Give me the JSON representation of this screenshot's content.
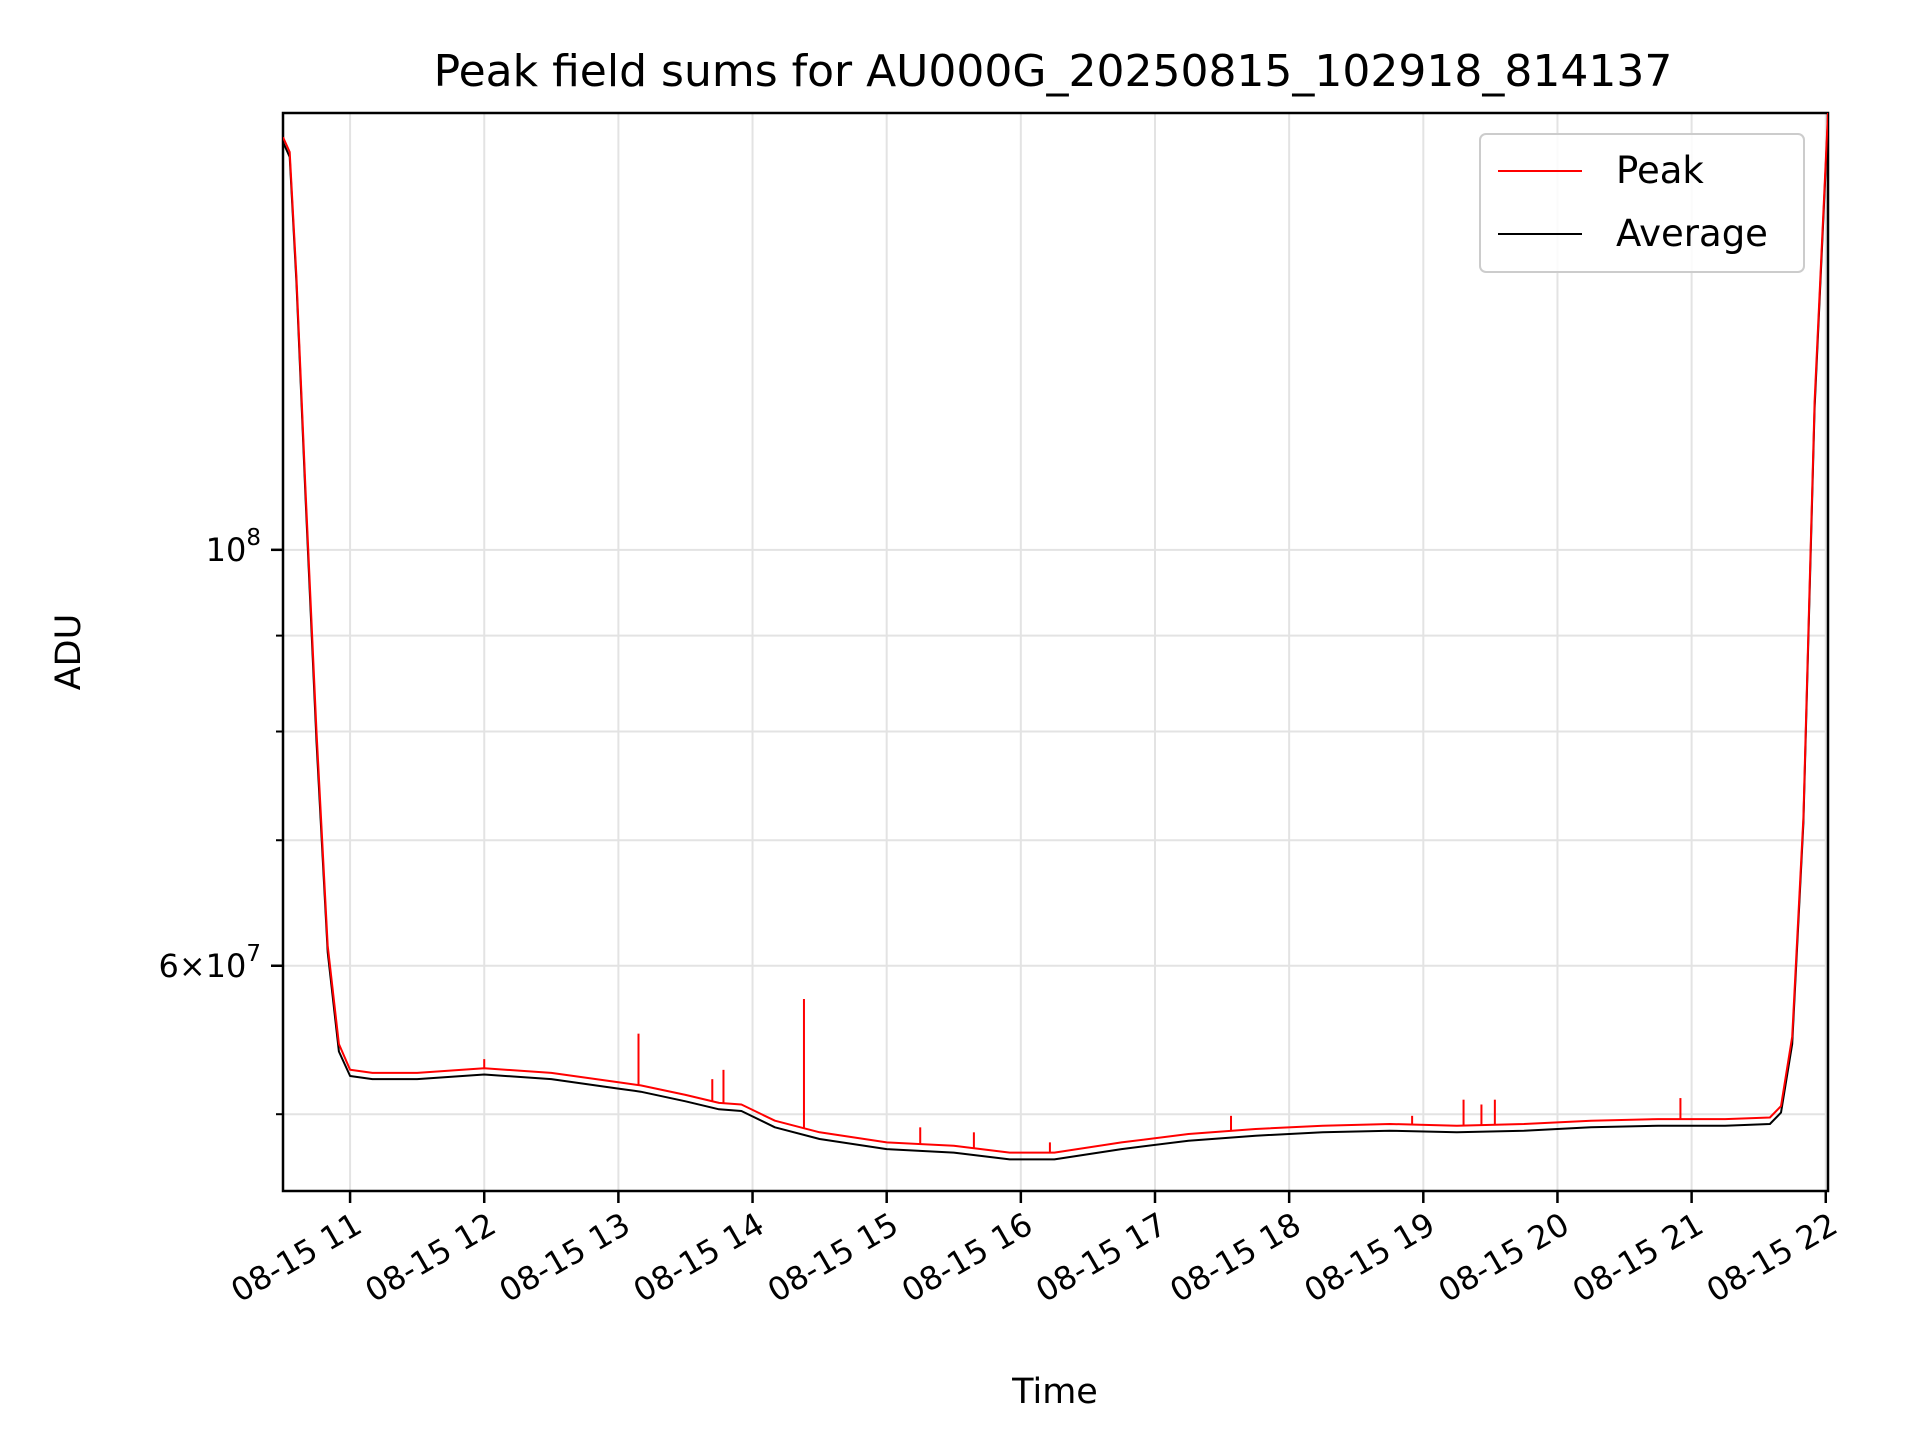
{
  "chart_data": {
    "type": "line",
    "title": "Peak field sums for AU000G_20250815_102918_814137",
    "xlabel": "Time",
    "ylabel": "ADU",
    "y_scale": "log",
    "grid": true,
    "legend_position": "top-right",
    "xlim": [
      "2025-08-15 10:30",
      "2025-08-15 22:01"
    ],
    "ylim": [
      45500000,
      171000000
    ],
    "x_ticks": [
      "08-15 11",
      "08-15 12",
      "08-15 13",
      "08-15 14",
      "08-15 15",
      "08-15 16",
      "08-15 17",
      "08-15 18",
      "08-15 19",
      "08-15 20",
      "08-15 21",
      "08-15 22"
    ],
    "y_ticks": [
      {
        "value": 100000000,
        "label": "10^8"
      },
      {
        "value": 60000000,
        "label": "6×10^7"
      }
    ],
    "series": [
      {
        "name": "Peak",
        "color": "#ff0000",
        "x": [
          "2025-08-15 10:30",
          "2025-08-15 10:33",
          "2025-08-15 10:36",
          "2025-08-15 10:40",
          "2025-08-15 10:45",
          "2025-08-15 10:50",
          "2025-08-15 10:55",
          "2025-08-15 11:00",
          "2025-08-15 11:10",
          "2025-08-15 11:30",
          "2025-08-15 12:00",
          "2025-08-15 12:30",
          "2025-08-15 13:00",
          "2025-08-15 13:10",
          "2025-08-15 13:30",
          "2025-08-15 13:45",
          "2025-08-15 13:55",
          "2025-08-15 14:10",
          "2025-08-15 14:30",
          "2025-08-15 15:00",
          "2025-08-15 15:30",
          "2025-08-15 15:55",
          "2025-08-15 16:15",
          "2025-08-15 16:45",
          "2025-08-15 17:15",
          "2025-08-15 17:45",
          "2025-08-15 18:15",
          "2025-08-15 18:45",
          "2025-08-15 19:15",
          "2025-08-15 19:45",
          "2025-08-15 20:15",
          "2025-08-15 20:45",
          "2025-08-15 21:15",
          "2025-08-15 21:35",
          "2025-08-15 21:40",
          "2025-08-15 21:45",
          "2025-08-15 21:50",
          "2025-08-15 21:55",
          "2025-08-15 22:01"
        ],
        "values": [
          166000000,
          163000000,
          140000000,
          108000000,
          80000000,
          61500000,
          54500000,
          52800000,
          52600000,
          52600000,
          52900000,
          52600000,
          52000000,
          51800000,
          51200000,
          50700000,
          50600000,
          49600000,
          48900000,
          48300000,
          48100000,
          47700000,
          47700000,
          48300000,
          48800000,
          49100000,
          49300000,
          49400000,
          49300000,
          49400000,
          49600000,
          49700000,
          49700000,
          49800000,
          50500000,
          55000000,
          72000000,
          120000000,
          171000000
        ]
      },
      {
        "name": "Average",
        "color": "#000000",
        "x": [
          "2025-08-15 10:30",
          "2025-08-15 10:33",
          "2025-08-15 10:36",
          "2025-08-15 10:40",
          "2025-08-15 10:45",
          "2025-08-15 10:50",
          "2025-08-15 10:55",
          "2025-08-15 11:00",
          "2025-08-15 11:10",
          "2025-08-15 11:30",
          "2025-08-15 12:00",
          "2025-08-15 12:30",
          "2025-08-15 13:00",
          "2025-08-15 13:10",
          "2025-08-15 13:30",
          "2025-08-15 13:45",
          "2025-08-15 13:55",
          "2025-08-15 14:10",
          "2025-08-15 14:30",
          "2025-08-15 15:00",
          "2025-08-15 15:30",
          "2025-08-15 15:55",
          "2025-08-15 16:15",
          "2025-08-15 16:45",
          "2025-08-15 17:15",
          "2025-08-15 17:45",
          "2025-08-15 18:15",
          "2025-08-15 18:45",
          "2025-08-15 19:15",
          "2025-08-15 19:45",
          "2025-08-15 20:15",
          "2025-08-15 20:45",
          "2025-08-15 21:15",
          "2025-08-15 21:35",
          "2025-08-15 21:40",
          "2025-08-15 21:45",
          "2025-08-15 21:50",
          "2025-08-15 21:55",
          "2025-08-15 22:01"
        ],
        "values": [
          165000000,
          162000000,
          139000000,
          107000000,
          79000000,
          61000000,
          54000000,
          52400000,
          52200000,
          52200000,
          52500000,
          52200000,
          51600000,
          51400000,
          50800000,
          50300000,
          50200000,
          49200000,
          48500000,
          47900000,
          47700000,
          47300000,
          47300000,
          47900000,
          48400000,
          48700000,
          48900000,
          49000000,
          48900000,
          49000000,
          49200000,
          49300000,
          49300000,
          49400000,
          50100000,
          54500000,
          71500000,
          119000000,
          170000000
        ]
      }
    ],
    "peak_spikes": [
      {
        "x": "2025-08-15 12:00",
        "value": 53500000
      },
      {
        "x": "2025-08-15 13:09",
        "value": 55200000
      },
      {
        "x": "2025-08-15 13:42",
        "value": 52200000
      },
      {
        "x": "2025-08-15 13:47",
        "value": 52800000
      },
      {
        "x": "2025-08-15 14:23",
        "value": 57600000
      },
      {
        "x": "2025-08-15 15:15",
        "value": 49200000
      },
      {
        "x": "2025-08-15 15:39",
        "value": 48900000
      },
      {
        "x": "2025-08-15 16:13",
        "value": 48300000
      },
      {
        "x": "2025-08-15 17:34",
        "value": 49900000
      },
      {
        "x": "2025-08-15 18:55",
        "value": 49900000
      },
      {
        "x": "2025-08-15 19:18",
        "value": 50900000
      },
      {
        "x": "2025-08-15 19:26",
        "value": 50600000
      },
      {
        "x": "2025-08-15 19:32",
        "value": 50900000
      },
      {
        "x": "2025-08-15 20:55",
        "value": 51000000
      }
    ]
  }
}
